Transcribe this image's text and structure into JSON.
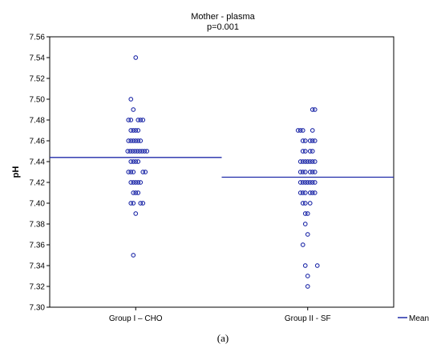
{
  "chart_data": {
    "type": "scatter",
    "title": "Mother - plasma",
    "subtitle": "p=0.001",
    "xlabel": "",
    "ylabel": "pH",
    "ylim": [
      7.3,
      7.56
    ],
    "yticks": [
      "7.30",
      "7.32",
      "7.34",
      "7.36",
      "7.38",
      "7.40",
      "7.42",
      "7.44",
      "7.46",
      "7.48",
      "7.50",
      "7.52",
      "7.54",
      "7.56"
    ],
    "categories": [
      "Group I – CHO",
      "Group II - SF"
    ],
    "legend": {
      "label": "Mean",
      "placement": "bottom-right"
    },
    "marker_color": "#1f2aa8",
    "mean_color": "#1f2aa8",
    "means": [
      7.444,
      7.425
    ],
    "groups": [
      {
        "name": "Group I – CHO",
        "values": [
          7.54,
          7.5,
          7.49,
          7.48,
          7.48,
          7.48,
          7.48,
          7.48,
          7.47,
          7.47,
          7.47,
          7.47,
          7.46,
          7.46,
          7.46,
          7.46,
          7.46,
          7.46,
          7.45,
          7.45,
          7.45,
          7.45,
          7.45,
          7.45,
          7.45,
          7.45,
          7.45,
          7.44,
          7.44,
          7.44,
          7.44,
          7.43,
          7.43,
          7.43,
          7.43,
          7.43,
          7.42,
          7.42,
          7.42,
          7.42,
          7.42,
          7.41,
          7.41,
          7.41,
          7.4,
          7.4,
          7.4,
          7.4,
          7.39,
          7.35
        ],
        "offsets": [
          0,
          -6,
          -3,
          -9,
          -6,
          3,
          6,
          9,
          -6,
          -3,
          0,
          3,
          -9,
          -6,
          -3,
          0,
          3,
          6,
          -10,
          -7,
          -4,
          -1,
          2,
          5,
          8,
          11,
          14,
          -6,
          -3,
          0,
          3,
          -9,
          -6,
          -3,
          9,
          12,
          -6,
          -3,
          0,
          3,
          6,
          -3,
          0,
          3,
          -6,
          -3,
          6,
          9,
          0,
          -3
        ]
      },
      {
        "name": "Group II - SF",
        "values": [
          7.49,
          7.49,
          7.47,
          7.47,
          7.47,
          7.47,
          7.46,
          7.46,
          7.46,
          7.46,
          7.46,
          7.45,
          7.45,
          7.45,
          7.45,
          7.44,
          7.44,
          7.44,
          7.44,
          7.44,
          7.44,
          7.44,
          7.43,
          7.43,
          7.43,
          7.43,
          7.43,
          7.43,
          7.42,
          7.42,
          7.42,
          7.42,
          7.42,
          7.42,
          7.42,
          7.41,
          7.41,
          7.41,
          7.41,
          7.41,
          7.41,
          7.4,
          7.4,
          7.4,
          7.39,
          7.39,
          7.38,
          7.37,
          7.36,
          7.34,
          7.34,
          7.33,
          7.32
        ],
        "offsets": [
          6,
          9,
          -12,
          -9,
          -6,
          6,
          -6,
          -3,
          3,
          6,
          9,
          -6,
          -3,
          3,
          6,
          -9,
          -6,
          -3,
          0,
          3,
          6,
          9,
          -9,
          -6,
          -3,
          3,
          6,
          9,
          -9,
          -6,
          -3,
          0,
          3,
          6,
          9,
          -9,
          -6,
          -3,
          3,
          6,
          9,
          -6,
          -3,
          3,
          -3,
          0,
          -3,
          0,
          -6,
          -3,
          12,
          0,
          0
        ]
      }
    ]
  },
  "caption": "(a)"
}
